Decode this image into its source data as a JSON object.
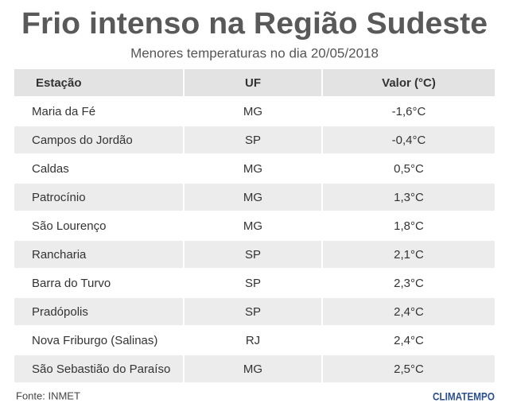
{
  "header": {
    "title": "Frio intenso na Região Sudeste",
    "subtitle": "Menores temperaturas no dia 20/05/2018"
  },
  "table": {
    "columns": [
      "Estação",
      "UF",
      "Valor (°C)"
    ],
    "rows": [
      [
        "Maria da Fé",
        "MG",
        "-1,6°C"
      ],
      [
        "Campos do Jordão",
        "SP",
        "-0,4°C"
      ],
      [
        "Caldas",
        "MG",
        "0,5°C"
      ],
      [
        "Patrocínio",
        "MG",
        "1,3°C"
      ],
      [
        "São Lourenço",
        "MG",
        "1,8°C"
      ],
      [
        "Rancharia",
        "SP",
        "2,1°C"
      ],
      [
        "Barra do Turvo",
        "SP",
        "2,3°C"
      ],
      [
        "Pradópolis",
        "SP",
        "2,4°C"
      ],
      [
        "Nova Friburgo (Salinas)",
        "RJ",
        "2,4°C"
      ],
      [
        "São Sebastião do Paraíso",
        "MG",
        "2,5°C"
      ]
    ]
  },
  "footer": {
    "source": "Fonte: INMET",
    "brand": "CLIMATEMPO"
  }
}
